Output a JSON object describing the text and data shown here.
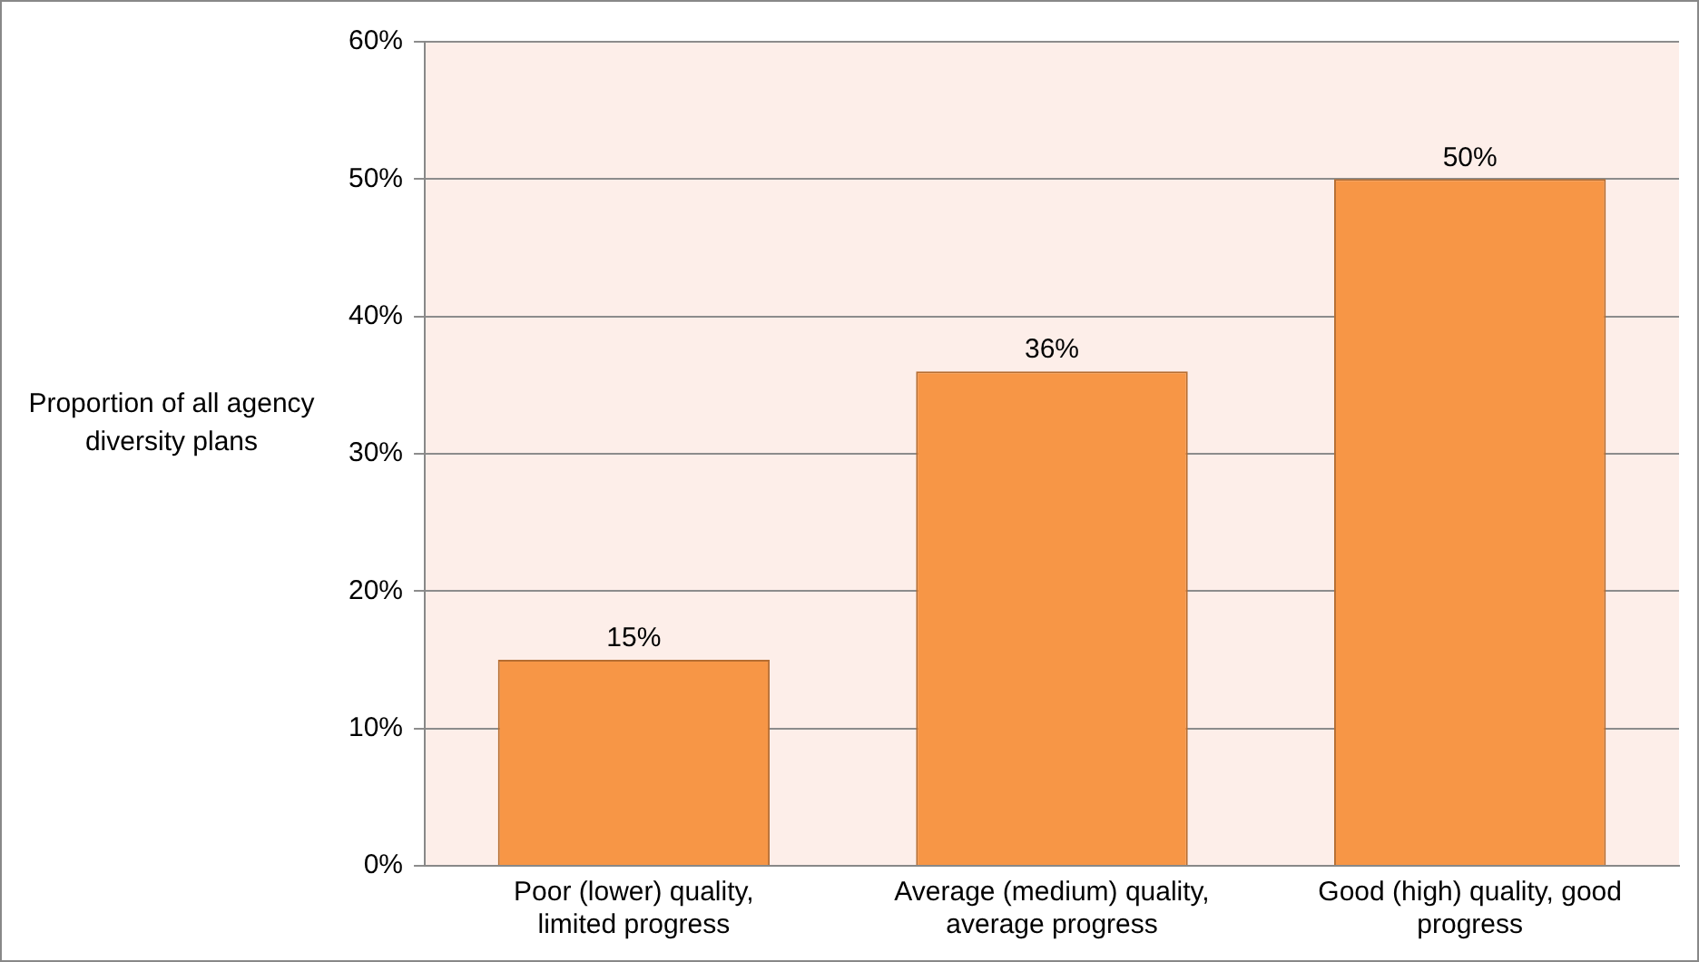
{
  "chart_data": {
    "type": "bar",
    "ylabel": "Proportion of all agency diversity plans",
    "categories": [
      "Poor (lower) quality, limited progress",
      "Average (medium) quality, average progress",
      "Good (high) quality, good progress"
    ],
    "values": [
      15,
      36,
      50
    ],
    "value_labels": [
      "15%",
      "36%",
      "50%"
    ],
    "color": "#f79646",
    "ylim": [
      0,
      60
    ],
    "yticks": [
      {
        "value": 0,
        "label": "0%"
      },
      {
        "value": 10,
        "label": "10%"
      },
      {
        "value": 20,
        "label": "20%"
      },
      {
        "value": 30,
        "label": "30%"
      },
      {
        "value": 40,
        "label": "40%"
      },
      {
        "value": 50,
        "label": "50%"
      },
      {
        "value": 60,
        "label": "60%"
      }
    ],
    "grid": "y",
    "legend": false
  }
}
